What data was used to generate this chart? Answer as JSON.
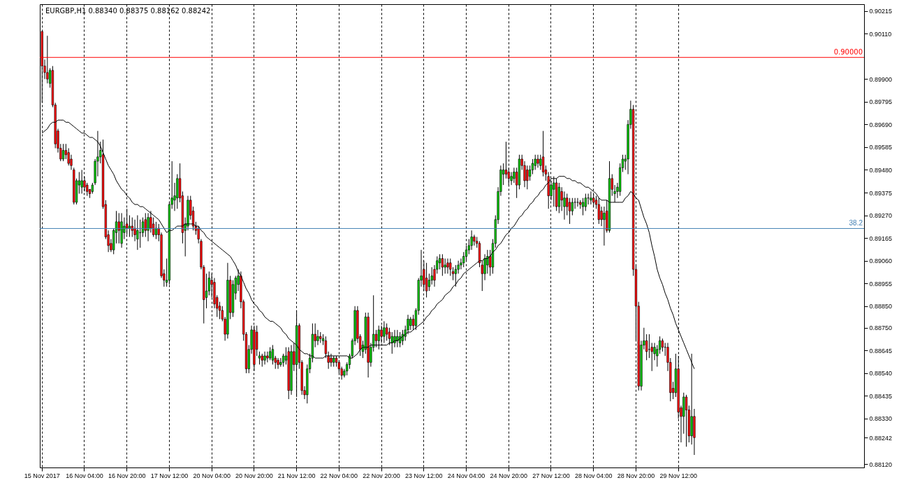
{
  "chart_data": {
    "type": "candlestick",
    "title": "EURGBP,H1  0.88340 0.88375 0.88162 0.88242",
    "categories": [
      "15 Nov 2017",
      null,
      null,
      null,
      null,
      null,
      null,
      null,
      null,
      null,
      null,
      null,
      null,
      null,
      null,
      null,
      "16 Nov 04:00",
      null,
      null,
      null,
      null,
      null,
      null,
      null,
      null,
      null,
      null,
      null,
      null,
      null,
      null,
      null,
      "16 Nov 20:00",
      null,
      null,
      null,
      null,
      null,
      null,
      null,
      null,
      null,
      null,
      null,
      null,
      null,
      null,
      null,
      "17 Nov 12:00",
      null,
      null,
      null,
      null,
      null,
      null,
      null,
      null,
      null,
      null,
      null,
      null,
      null,
      null,
      null,
      "20 Nov 04:00",
      null,
      null,
      null,
      null,
      null,
      null,
      null,
      null,
      null,
      null,
      null,
      null,
      null,
      null,
      null,
      "20 Nov 20:00",
      null,
      null,
      null,
      null,
      null,
      null,
      null,
      null,
      null,
      null,
      null,
      null,
      null,
      null,
      null,
      "21 Nov 12:00",
      null,
      null,
      null,
      null,
      null,
      null,
      null,
      null,
      null,
      null,
      null,
      null,
      null,
      null,
      null,
      "22 Nov 04:00",
      null,
      null,
      null,
      null,
      null,
      null,
      null,
      null,
      null,
      null,
      null,
      null,
      null,
      null,
      null,
      "22 Nov 20:00",
      null,
      null,
      null,
      null,
      null,
      null,
      null,
      null,
      null,
      null,
      null,
      null,
      null,
      null,
      null,
      "23 Nov 12:00",
      null,
      null,
      null,
      null,
      null,
      null,
      null,
      null,
      null,
      null,
      null,
      null,
      null,
      null,
      null,
      "24 Nov 04:00",
      null,
      null,
      null,
      null,
      null,
      null,
      null,
      null,
      null,
      null,
      null,
      null,
      null,
      null,
      null,
      "24 Nov 20:00",
      null,
      null,
      null,
      null,
      null,
      null,
      null,
      null,
      null,
      null,
      null,
      null,
      null,
      null,
      null,
      "27 Nov 12:00",
      null,
      null,
      null,
      null,
      null,
      null,
      null,
      null,
      null,
      null,
      null,
      null,
      null,
      null,
      null,
      "28 Nov 04:00",
      null,
      null,
      null,
      null,
      null,
      null,
      null,
      null,
      null,
      null,
      null,
      null,
      null,
      null,
      null,
      "28 Nov 20:00",
      null,
      null,
      null,
      null,
      null,
      null,
      null,
      null,
      null,
      null,
      null,
      null,
      null,
      null,
      null,
      "29 Nov 12:00",
      null,
      null,
      null,
      null,
      null,
      null
    ],
    "ohlc": [
      [
        0.9012,
        0.9012,
        0.8979,
        0.8996
      ],
      [
        0.8996,
        0.8999,
        0.899,
        0.8993
      ],
      [
        0.8993,
        0.901,
        0.8988,
        0.899
      ],
      [
        0.8988,
        0.8995,
        0.8986,
        0.8994
      ],
      [
        0.8994,
        0.8996,
        0.8977,
        0.8978
      ],
      [
        0.8978,
        0.8979,
        0.8958,
        0.896
      ],
      [
        0.8966,
        0.8967,
        0.8956,
        0.8958
      ],
      [
        0.8958,
        0.896,
        0.8952,
        0.8953
      ],
      [
        0.8953,
        0.896,
        0.8952,
        0.8957
      ],
      [
        0.8957,
        0.896,
        0.8953,
        0.8955
      ],
      [
        0.8956,
        0.8958,
        0.895,
        0.8951
      ],
      [
        0.8953,
        0.8955,
        0.8948,
        0.895
      ],
      [
        0.8948,
        0.8949,
        0.8932,
        0.8933
      ],
      [
        0.8933,
        0.8944,
        0.8932,
        0.8943
      ],
      [
        0.8941,
        0.8947,
        0.8937,
        0.8943
      ],
      [
        0.894,
        0.8948,
        0.8937,
        0.8943
      ],
      [
        0.8943,
        0.8945,
        0.8938,
        0.894
      ],
      [
        0.8941,
        0.8942,
        0.8936,
        0.8938
      ],
      [
        0.8939,
        0.8939,
        0.8935,
        0.8937
      ],
      [
        0.8938,
        0.8942,
        0.8937,
        0.8941
      ],
      [
        0.8942,
        0.8953,
        0.8941,
        0.8952
      ],
      [
        0.8952,
        0.8966,
        0.8945,
        0.8954
      ],
      [
        0.8954,
        0.8961,
        0.8951,
        0.8957
      ],
      [
        0.8955,
        0.8962,
        0.893,
        0.8931
      ],
      [
        0.8932,
        0.8934,
        0.8916,
        0.8917
      ],
      [
        0.8918,
        0.892,
        0.891,
        0.8913
      ],
      [
        0.8914,
        0.8916,
        0.891,
        0.8911
      ],
      [
        0.8911,
        0.8921,
        0.8909,
        0.892
      ],
      [
        0.8919,
        0.8929,
        0.8914,
        0.8924
      ],
      [
        0.8924,
        0.8928,
        0.8914,
        0.892
      ],
      [
        0.8914,
        0.8928,
        0.8912,
        0.8924
      ],
      [
        0.8919,
        0.8926,
        0.8916,
        0.8922
      ],
      [
        0.8923,
        0.893,
        0.8918,
        0.8921
      ],
      [
        0.8921,
        0.8927,
        0.8917,
        0.8922
      ],
      [
        0.8922,
        0.8926,
        0.8917,
        0.892
      ],
      [
        0.8921,
        0.8925,
        0.8915,
        0.8918
      ],
      [
        0.8916,
        0.8927,
        0.8911,
        0.892
      ],
      [
        0.8919,
        0.8925,
        0.8912,
        0.8919
      ],
      [
        0.8919,
        0.8926,
        0.8917,
        0.8924
      ],
      [
        0.8925,
        0.8928,
        0.8917,
        0.892
      ],
      [
        0.892,
        0.8928,
        0.8915,
        0.8926
      ],
      [
        0.8926,
        0.8929,
        0.8919,
        0.8921
      ],
      [
        0.8923,
        0.8926,
        0.8917,
        0.8918
      ],
      [
        0.8918,
        0.8924,
        0.8916,
        0.8921
      ],
      [
        0.8921,
        0.8923,
        0.8915,
        0.8918
      ],
      [
        0.8918,
        0.8919,
        0.8898,
        0.8899
      ],
      [
        0.89,
        0.8902,
        0.8894,
        0.8897
      ],
      [
        0.8896,
        0.8907,
        0.8894,
        0.8897
      ],
      [
        0.8897,
        0.8933,
        0.8895,
        0.8932
      ],
      [
        0.8932,
        0.8952,
        0.893,
        0.8935
      ],
      [
        0.8934,
        0.8942,
        0.8929,
        0.8936
      ],
      [
        0.8935,
        0.8946,
        0.893,
        0.8944
      ],
      [
        0.8944,
        0.8951,
        0.8933,
        0.8935
      ],
      [
        0.8936,
        0.8938,
        0.8914,
        0.8919
      ],
      [
        0.892,
        0.8926,
        0.8908,
        0.8923
      ],
      [
        0.8922,
        0.8936,
        0.892,
        0.8934
      ],
      [
        0.8934,
        0.8936,
        0.8925,
        0.8927
      ],
      [
        0.8929,
        0.8931,
        0.892,
        0.8922
      ],
      [
        0.8922,
        0.8924,
        0.8918,
        0.892
      ],
      [
        0.8921,
        0.8922,
        0.8914,
        0.8916
      ],
      [
        0.8915,
        0.8916,
        0.8902,
        0.8903
      ],
      [
        0.8903,
        0.8904,
        0.8877,
        0.8888
      ],
      [
        0.8889,
        0.89,
        0.8884,
        0.8892
      ],
      [
        0.8892,
        0.8901,
        0.889,
        0.8898
      ],
      [
        0.8897,
        0.89,
        0.8889,
        0.8895
      ],
      [
        0.8896,
        0.8898,
        0.8884,
        0.8886
      ],
      [
        0.8889,
        0.889,
        0.888,
        0.8884
      ],
      [
        0.8885,
        0.8887,
        0.8879,
        0.8883
      ],
      [
        0.8883,
        0.8885,
        0.8878,
        0.8879
      ],
      [
        0.8879,
        0.888,
        0.8869,
        0.8872
      ],
      [
        0.8872,
        0.8905,
        0.887,
        0.8897
      ],
      [
        0.8897,
        0.8899,
        0.8879,
        0.8882
      ],
      [
        0.8882,
        0.8897,
        0.888,
        0.8895
      ],
      [
        0.8891,
        0.8899,
        0.8888,
        0.8898
      ],
      [
        0.8895,
        0.8902,
        0.8892,
        0.8899
      ],
      [
        0.8899,
        0.8901,
        0.8884,
        0.8887
      ],
      [
        0.8887,
        0.8888,
        0.8869,
        0.8872
      ],
      [
        0.8872,
        0.8873,
        0.8854,
        0.8856
      ],
      [
        0.8856,
        0.8867,
        0.8854,
        0.8865
      ],
      [
        0.8865,
        0.8876,
        0.8863,
        0.8874
      ],
      [
        0.8874,
        0.8876,
        0.8855,
        0.8858
      ],
      [
        0.8873,
        0.8876,
        0.8862,
        0.8865
      ],
      [
        0.8861,
        0.8864,
        0.8858,
        0.8862
      ],
      [
        0.8862,
        0.8863,
        0.8857,
        0.886
      ],
      [
        0.886,
        0.8864,
        0.8858,
        0.8862
      ],
      [
        0.8862,
        0.8864,
        0.8859,
        0.8861
      ],
      [
        0.8861,
        0.8866,
        0.886,
        0.8864
      ],
      [
        0.886,
        0.8867,
        0.8858,
        0.8865
      ],
      [
        0.8861,
        0.8862,
        0.8856,
        0.8859
      ],
      [
        0.886,
        0.8861,
        0.8856,
        0.8858
      ],
      [
        0.8858,
        0.8861,
        0.8857,
        0.8859
      ],
      [
        0.8859,
        0.8863,
        0.8857,
        0.8862
      ],
      [
        0.886,
        0.8866,
        0.8858,
        0.8862
      ],
      [
        0.8864,
        0.8866,
        0.8842,
        0.8846
      ],
      [
        0.8846,
        0.8867,
        0.8844,
        0.8864
      ],
      [
        0.8864,
        0.8868,
        0.8855,
        0.8858
      ],
      [
        0.8858,
        0.8883,
        0.8843,
        0.8876
      ],
      [
        0.8876,
        0.8877,
        0.8856,
        0.8859
      ],
      [
        0.8859,
        0.886,
        0.8844,
        0.8846
      ],
      [
        0.8846,
        0.8848,
        0.8842,
        0.8844
      ],
      [
        0.8844,
        0.8858,
        0.884,
        0.8856
      ],
      [
        0.8856,
        0.8863,
        0.8854,
        0.8861
      ],
      [
        0.8861,
        0.8877,
        0.8859,
        0.8872
      ],
      [
        0.8872,
        0.8877,
        0.8866,
        0.8869
      ],
      [
        0.8869,
        0.8874,
        0.8867,
        0.8871
      ],
      [
        0.8871,
        0.8873,
        0.8868,
        0.887
      ],
      [
        0.8869,
        0.8872,
        0.8867,
        0.887
      ],
      [
        0.8869,
        0.8871,
        0.8861,
        0.8863
      ],
      [
        0.8862,
        0.8864,
        0.8856,
        0.8859
      ],
      [
        0.8861,
        0.8863,
        0.8857,
        0.8859
      ],
      [
        0.8859,
        0.8862,
        0.8857,
        0.8861
      ],
      [
        0.8861,
        0.8862,
        0.8857,
        0.8859
      ],
      [
        0.8859,
        0.886,
        0.8854,
        0.8856
      ],
      [
        0.8856,
        0.8857,
        0.8851,
        0.8853
      ],
      [
        0.8853,
        0.8856,
        0.8852,
        0.8855
      ],
      [
        0.8855,
        0.8859,
        0.8853,
        0.8858
      ],
      [
        0.8858,
        0.8863,
        0.8856,
        0.8862
      ],
      [
        0.8862,
        0.887,
        0.8861,
        0.8869
      ],
      [
        0.8869,
        0.8885,
        0.8867,
        0.8883
      ],
      [
        0.8883,
        0.8885,
        0.8868,
        0.887
      ],
      [
        0.8871,
        0.8872,
        0.8862,
        0.8865
      ],
      [
        0.8864,
        0.8869,
        0.8861,
        0.8867
      ],
      [
        0.8865,
        0.8882,
        0.8863,
        0.888
      ],
      [
        0.888,
        0.8882,
        0.8852,
        0.8859
      ],
      [
        0.8859,
        0.8868,
        0.8857,
        0.8866
      ],
      [
        0.8866,
        0.889,
        0.8864,
        0.8872
      ],
      [
        0.8872,
        0.8874,
        0.8866,
        0.8869
      ],
      [
        0.8869,
        0.8876,
        0.8865,
        0.8874
      ],
      [
        0.8874,
        0.8876,
        0.8868,
        0.8871
      ],
      [
        0.8871,
        0.8878,
        0.8868,
        0.8875
      ],
      [
        0.8875,
        0.8877,
        0.8869,
        0.8872
      ],
      [
        0.8873,
        0.8875,
        0.8867,
        0.887
      ],
      [
        0.8868,
        0.8873,
        0.8863,
        0.8871
      ],
      [
        0.8868,
        0.8874,
        0.8866,
        0.8871
      ],
      [
        0.8869,
        0.8874,
        0.8866,
        0.8871
      ],
      [
        0.8868,
        0.8873,
        0.8866,
        0.8871
      ],
      [
        0.8869,
        0.8874,
        0.8867,
        0.8872
      ],
      [
        0.8871,
        0.8876,
        0.8869,
        0.8874
      ],
      [
        0.8874,
        0.8881,
        0.8872,
        0.8879
      ],
      [
        0.8876,
        0.888,
        0.8874,
        0.8879
      ],
      [
        0.8879,
        0.8881,
        0.8874,
        0.8876
      ],
      [
        0.8876,
        0.8884,
        0.8874,
        0.8883
      ],
      [
        0.8883,
        0.8898,
        0.8881,
        0.8897
      ],
      [
        0.8897,
        0.8911,
        0.8894,
        0.8899
      ],
      [
        0.8902,
        0.8906,
        0.8892,
        0.8895
      ],
      [
        0.8898,
        0.8905,
        0.8889,
        0.8892
      ],
      [
        0.8894,
        0.89,
        0.8892,
        0.8897
      ],
      [
        0.8897,
        0.8903,
        0.8895,
        0.8899
      ],
      [
        0.8902,
        0.8904,
        0.8894,
        0.8897
      ],
      [
        0.8902,
        0.8908,
        0.89,
        0.8906
      ],
      [
        0.8905,
        0.8909,
        0.8902,
        0.8907
      ],
      [
        0.8907,
        0.8909,
        0.8899,
        0.8903
      ],
      [
        0.8903,
        0.8907,
        0.89,
        0.8904
      ],
      [
        0.8905,
        0.8907,
        0.89,
        0.8903
      ],
      [
        0.8905,
        0.8907,
        0.8899,
        0.8902
      ],
      [
        0.8901,
        0.8903,
        0.8897,
        0.89
      ],
      [
        0.89,
        0.8904,
        0.8894,
        0.8902
      ],
      [
        0.8902,
        0.8906,
        0.89,
        0.8904
      ],
      [
        0.8904,
        0.8907,
        0.8902,
        0.8905
      ],
      [
        0.8905,
        0.891,
        0.8903,
        0.8908
      ],
      [
        0.8908,
        0.8913,
        0.8906,
        0.8911
      ],
      [
        0.8911,
        0.8916,
        0.8909,
        0.8913
      ],
      [
        0.8913,
        0.892,
        0.8911,
        0.8917
      ],
      [
        0.8917,
        0.8918,
        0.8913,
        0.8915
      ],
      [
        0.8915,
        0.8917,
        0.8912,
        0.8914
      ],
      [
        0.8914,
        0.8915,
        0.8903,
        0.8905
      ],
      [
        0.8904,
        0.8906,
        0.8892,
        0.89
      ],
      [
        0.89,
        0.8909,
        0.8897,
        0.8907
      ],
      [
        0.8904,
        0.8911,
        0.89,
        0.8908
      ],
      [
        0.8908,
        0.8911,
        0.8899,
        0.8903
      ],
      [
        0.8903,
        0.8916,
        0.89,
        0.8914
      ],
      [
        0.8914,
        0.8927,
        0.8912,
        0.8925
      ],
      [
        0.8925,
        0.894,
        0.8923,
        0.8938
      ],
      [
        0.8938,
        0.895,
        0.8936,
        0.8948
      ],
      [
        0.8946,
        0.8951,
        0.8941,
        0.8948
      ],
      [
        0.8948,
        0.8961,
        0.8944,
        0.8946
      ],
      [
        0.8947,
        0.8949,
        0.8941,
        0.8944
      ],
      [
        0.8943,
        0.8947,
        0.8941,
        0.8945
      ],
      [
        0.8944,
        0.8949,
        0.8942,
        0.8947
      ],
      [
        0.8947,
        0.8949,
        0.8935,
        0.8941
      ],
      [
        0.8941,
        0.8955,
        0.8939,
        0.8953
      ],
      [
        0.8953,
        0.8955,
        0.8948,
        0.895
      ],
      [
        0.895,
        0.8952,
        0.894,
        0.8943
      ],
      [
        0.8948,
        0.895,
        0.8939,
        0.8943
      ],
      [
        0.8945,
        0.895,
        0.8943,
        0.8948
      ],
      [
        0.8948,
        0.8953,
        0.8946,
        0.8951
      ],
      [
        0.895,
        0.8955,
        0.8948,
        0.8953
      ],
      [
        0.8953,
        0.8955,
        0.8949,
        0.8951
      ],
      [
        0.895,
        0.8955,
        0.8948,
        0.8953
      ],
      [
        0.8954,
        0.8966,
        0.8945,
        0.8947
      ],
      [
        0.8948,
        0.895,
        0.8943,
        0.8946
      ],
      [
        0.8945,
        0.8947,
        0.893,
        0.8936
      ],
      [
        0.8936,
        0.8943,
        0.8934,
        0.8941
      ],
      [
        0.8939,
        0.8945,
        0.8931,
        0.8942
      ],
      [
        0.8942,
        0.8944,
        0.8929,
        0.8931
      ],
      [
        0.8931,
        0.8942,
        0.8928,
        0.894
      ],
      [
        0.8938,
        0.894,
        0.8929,
        0.8934
      ],
      [
        0.8931,
        0.8938,
        0.8925,
        0.8935
      ],
      [
        0.8935,
        0.8937,
        0.8927,
        0.8931
      ],
      [
        0.8933,
        0.8935,
        0.8923,
        0.8929
      ],
      [
        0.8929,
        0.8935,
        0.8927,
        0.8933
      ],
      [
        0.8933,
        0.8935,
        0.893,
        0.8933
      ],
      [
        0.8933,
        0.8935,
        0.8931,
        0.8933
      ],
      [
        0.8933,
        0.8934,
        0.893,
        0.8932
      ],
      [
        0.8931,
        0.8935,
        0.8927,
        0.8933
      ],
      [
        0.8931,
        0.8937,
        0.8929,
        0.8935
      ],
      [
        0.8935,
        0.8937,
        0.8932,
        0.8935
      ],
      [
        0.8934,
        0.8938,
        0.8932,
        0.8935
      ],
      [
        0.8935,
        0.8937,
        0.8931,
        0.8933
      ],
      [
        0.8934,
        0.8936,
        0.893,
        0.8932
      ],
      [
        0.8932,
        0.8935,
        0.8923,
        0.8925
      ],
      [
        0.8929,
        0.8931,
        0.8922,
        0.8925
      ],
      [
        0.8925,
        0.8931,
        0.8913,
        0.8928
      ],
      [
        0.8929,
        0.8934,
        0.8919,
        0.892
      ],
      [
        0.892,
        0.8952,
        0.8919,
        0.8944
      ],
      [
        0.8944,
        0.8946,
        0.8936,
        0.8939
      ],
      [
        0.8937,
        0.8941,
        0.8933,
        0.8938
      ],
      [
        0.8938,
        0.8942,
        0.8935,
        0.894
      ],
      [
        0.8938,
        0.8951,
        0.8936,
        0.8949
      ],
      [
        0.8949,
        0.8955,
        0.8947,
        0.8953
      ],
      [
        0.8952,
        0.8955,
        0.8948,
        0.8953
      ],
      [
        0.8953,
        0.8971,
        0.8946,
        0.8969
      ],
      [
        0.8969,
        0.898,
        0.8967,
        0.8976
      ],
      [
        0.8976,
        0.8978,
        0.8899,
        0.8902
      ],
      [
        0.8902,
        0.8904,
        0.8869,
        0.8885
      ],
      [
        0.8885,
        0.8887,
        0.8846,
        0.8848
      ],
      [
        0.8848,
        0.8869,
        0.8846,
        0.8867
      ],
      [
        0.8867,
        0.8875,
        0.8865,
        0.8869
      ],
      [
        0.8869,
        0.8872,
        0.886,
        0.8864
      ],
      [
        0.8865,
        0.8872,
        0.8861,
        0.8865
      ],
      [
        0.8866,
        0.8868,
        0.8855,
        0.8864
      ],
      [
        0.8863,
        0.8868,
        0.886,
        0.8866
      ],
      [
        0.8862,
        0.8867,
        0.8857,
        0.8865
      ],
      [
        0.8865,
        0.8871,
        0.8863,
        0.8869
      ],
      [
        0.8869,
        0.887,
        0.8864,
        0.8866
      ],
      [
        0.8866,
        0.8868,
        0.8862,
        0.8866
      ],
      [
        0.8866,
        0.8868,
        0.8855,
        0.8859
      ],
      [
        0.8859,
        0.8861,
        0.8841,
        0.8845
      ],
      [
        0.8847,
        0.885,
        0.8842,
        0.8845
      ],
      [
        0.8845,
        0.8863,
        0.8843,
        0.8856
      ],
      [
        0.8856,
        0.8862,
        0.8833,
        0.8836
      ],
      [
        0.8838,
        0.8839,
        0.8822,
        0.8834
      ],
      [
        0.8834,
        0.8845,
        0.8826,
        0.8843
      ],
      [
        0.8843,
        0.8844,
        0.882,
        0.8837
      ],
      [
        0.8837,
        0.8839,
        0.8822,
        0.8825
      ],
      [
        0.8825,
        0.8863,
        0.8821,
        0.8834
      ],
      [
        0.8834,
        0.88375,
        0.88162,
        0.88242
      ]
    ],
    "series": [
      {
        "type": "line",
        "color": "#000000",
        "values": [
          0.8965,
          0.8966,
          0.8967,
          0.8969,
          0.897,
          0.897,
          0.8971,
          0.8971,
          0.8971,
          0.897,
          0.897,
          0.8969,
          0.8968,
          0.8967,
          0.8966,
          0.8965,
          0.8965,
          0.8964,
          0.8963,
          0.8963,
          0.8962,
          0.8961,
          0.8959,
          0.8956,
          0.8953,
          0.895,
          0.8948,
          0.8946,
          0.8943,
          0.8941,
          0.8939,
          0.8938,
          0.8936,
          0.8935,
          0.8933,
          0.8932,
          0.8932,
          0.8931,
          0.8931,
          0.893,
          0.8929,
          0.8928,
          0.8927,
          0.8926,
          0.8925,
          0.8923,
          0.8921,
          0.8919,
          0.892,
          0.892,
          0.8921,
          0.8922,
          0.8922,
          0.8922,
          0.8923,
          0.8923,
          0.8923,
          0.8923,
          0.8922,
          0.8922,
          0.892,
          0.8919,
          0.8917,
          0.8916,
          0.8915,
          0.8914,
          0.8913,
          0.8912,
          0.8911,
          0.891,
          0.8909,
          0.8908,
          0.8906,
          0.8904,
          0.8901,
          0.8899,
          0.8896,
          0.8893,
          0.8891,
          0.8888,
          0.8886,
          0.8885,
          0.8883,
          0.8882,
          0.888,
          0.8879,
          0.8878,
          0.8878,
          0.8877,
          0.8876,
          0.8875,
          0.8873,
          0.8872,
          0.887,
          0.8869,
          0.8868,
          0.8867,
          0.8865,
          0.8864,
          0.8863,
          0.8863,
          0.8862,
          0.8862,
          0.8861,
          0.8861,
          0.8861,
          0.8861,
          0.8862,
          0.8862,
          0.8862,
          0.8862,
          0.8862,
          0.8862,
          0.8862,
          0.8862,
          0.8862,
          0.8861,
          0.8861,
          0.8862,
          0.8863,
          0.8865,
          0.8866,
          0.8866,
          0.8866,
          0.8867,
          0.8867,
          0.8867,
          0.8867,
          0.8867,
          0.8867,
          0.8867,
          0.8868,
          0.8868,
          0.8869,
          0.8869,
          0.887,
          0.8871,
          0.8872,
          0.8873,
          0.8873,
          0.8874,
          0.8875,
          0.8876,
          0.8877,
          0.8878,
          0.888,
          0.8881,
          0.8883,
          0.8884,
          0.8886,
          0.8887,
          0.8888,
          0.889,
          0.8891,
          0.8892,
          0.8894,
          0.8895,
          0.8897,
          0.8898,
          0.89,
          0.8901,
          0.8902,
          0.8903,
          0.8904,
          0.8905,
          0.8906,
          0.8906,
          0.8907,
          0.8907,
          0.8908,
          0.891,
          0.8911,
          0.8913,
          0.8914,
          0.8916,
          0.8918,
          0.8919,
          0.8921,
          0.8922,
          0.8924,
          0.8926,
          0.8927,
          0.8929,
          0.893,
          0.8932,
          0.8933,
          0.8935,
          0.8936,
          0.8938,
          0.8939,
          0.8941,
          0.8942,
          0.8944,
          0.8944,
          0.8944,
          0.8945,
          0.8945,
          0.8945,
          0.8944,
          0.8944,
          0.8943,
          0.8943,
          0.8942,
          0.8942,
          0.8941,
          0.894,
          0.894,
          0.8939,
          0.8938,
          0.8937,
          0.8935,
          0.8934,
          0.8934,
          0.8934,
          0.8933,
          0.8933,
          0.8933,
          0.8933,
          0.8933,
          0.8933,
          0.8935,
          0.8936,
          0.8938,
          0.8937,
          0.8935,
          0.8934,
          0.893,
          0.8926,
          0.8923,
          0.8919,
          0.8913,
          0.8908,
          0.8902,
          0.8898,
          0.8895,
          0.8891,
          0.8888,
          0.8884,
          0.8881,
          0.8877,
          0.8874,
          0.8871,
          0.8868,
          0.8865,
          0.8862,
          0.8859,
          0.8856
        ]
      }
    ],
    "ylim": [
      0.88104,
      0.90246
    ],
    "yticks": [
      0.90215,
      {
        "value": 0.9011,
        "label": "0.90110"
      },
      {
        "value": 0.899,
        "label": "0.89900"
      },
      0.89795,
      {
        "value": 0.8969,
        "label": "0.89690"
      },
      0.89585,
      {
        "value": 0.8948,
        "label": "0.89480"
      },
      0.89375,
      {
        "value": 0.8927,
        "label": "0.89270"
      },
      0.89165,
      {
        "value": 0.8906,
        "label": "0.89060"
      },
      0.88955,
      {
        "value": 0.8885,
        "label": "0.88850"
      },
      {
        "value": 0.8875,
        "label": "0.88750"
      },
      0.88645,
      {
        "value": 0.8854,
        "label": "0.88540"
      },
      0.88435,
      {
        "value": 0.8833,
        "label": "0.88330"
      },
      0.88242,
      {
        "value": 0.8812,
        "label": "0.88120"
      }
    ],
    "ref_lines": [
      {
        "axis": "y",
        "value": 0.9,
        "label": "0.90000",
        "color": "#ff0000"
      },
      {
        "axis": "y",
        "value": 0.89209,
        "color": "#4682b4"
      }
    ],
    "annotations": [
      {
        "text": "38.2",
        "y": 0.89209
      }
    ],
    "grid": "x"
  }
}
